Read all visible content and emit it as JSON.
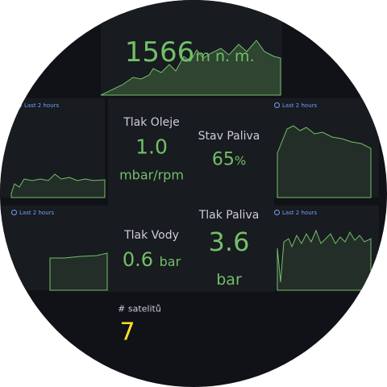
{
  "altitude": {
    "value": "1566",
    "unit": "m n. m."
  },
  "time_ranges": [
    "Last 2 hours",
    "Last 2 hours",
    "Last 2 hours",
    "Last 2 hours"
  ],
  "panels": [
    {
      "title": "Tlak Oleje",
      "value": "1.0",
      "unit": "mbar/rpm"
    },
    {
      "title": "Stav Paliva",
      "value": "65",
      "unit": "%"
    },
    {
      "title": "Tlak Vody",
      "value": "0.6",
      "unit": "bar"
    },
    {
      "title": "Tlak Paliva",
      "value": "3.6",
      "unit": "bar"
    }
  ],
  "satellites": {
    "title": "# satelitů",
    "value": "7"
  }
}
